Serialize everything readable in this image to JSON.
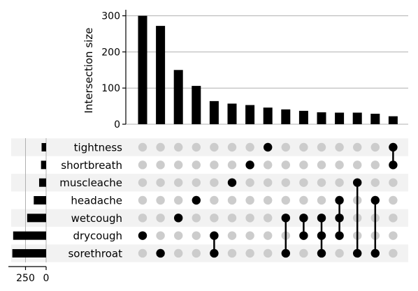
{
  "chart_data": {
    "type": "upset",
    "title": "",
    "ylabel": "Intersection size",
    "ylim": [
      0,
      320
    ],
    "yticks": [
      "0",
      "100",
      "200",
      "300"
    ],
    "set_size_ticks": [
      "250",
      "0"
    ],
    "set_size_xlim": [
      0,
      420
    ],
    "grid": true,
    "colors": {
      "bar": "#000000",
      "dot_active": "#000000",
      "dot_inactive": "#cccccc",
      "stripe": "#f2f2f2",
      "grid": "#b0b0b0"
    },
    "sets": [
      {
        "name": "tightness",
        "size": 55
      },
      {
        "name": "shortbreath",
        "size": 62
      },
      {
        "name": "muscleache",
        "size": 85
      },
      {
        "name": "headache",
        "size": 150
      },
      {
        "name": "wetcough",
        "size": 230
      },
      {
        "name": "drycough",
        "size": 400
      },
      {
        "name": "sorethroat",
        "size": 410
      }
    ],
    "intersections": [
      {
        "value": 300,
        "sets": [
          "drycough"
        ]
      },
      {
        "value": 272,
        "sets": [
          "sorethroat"
        ]
      },
      {
        "value": 150,
        "sets": [
          "wetcough"
        ]
      },
      {
        "value": 106,
        "sets": [
          "headache"
        ]
      },
      {
        "value": 64,
        "sets": [
          "drycough",
          "sorethroat"
        ]
      },
      {
        "value": 57,
        "sets": [
          "muscleache"
        ]
      },
      {
        "value": 53,
        "sets": [
          "shortbreath"
        ]
      },
      {
        "value": 46,
        "sets": [
          "tightness"
        ]
      },
      {
        "value": 41,
        "sets": [
          "wetcough",
          "sorethroat"
        ]
      },
      {
        "value": 37,
        "sets": [
          "wetcough",
          "drycough"
        ]
      },
      {
        "value": 33,
        "sets": [
          "wetcough",
          "drycough",
          "sorethroat"
        ]
      },
      {
        "value": 32,
        "sets": [
          "headache",
          "wetcough",
          "drycough"
        ]
      },
      {
        "value": 32,
        "sets": [
          "muscleache",
          "sorethroat"
        ]
      },
      {
        "value": 29,
        "sets": [
          "headache",
          "sorethroat"
        ]
      },
      {
        "value": 22,
        "sets": [
          "tightness",
          "shortbreath"
        ]
      }
    ]
  }
}
